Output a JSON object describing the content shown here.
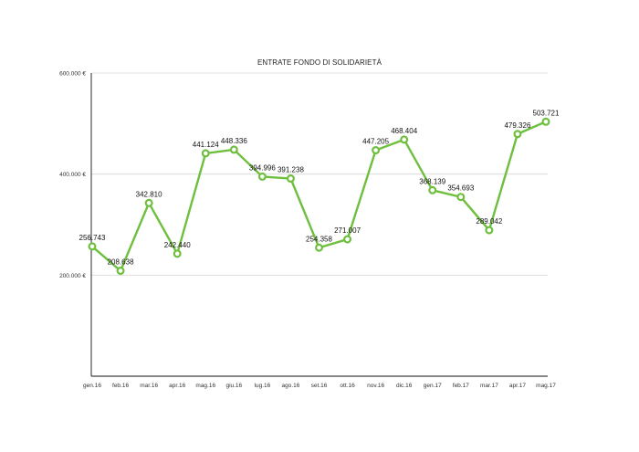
{
  "chart_data": {
    "type": "line",
    "title": "ENTRATE FONDO DI SOLIDARIETÀ",
    "xlabel": "",
    "ylabel": "",
    "ylim": [
      0,
      600000
    ],
    "yticks": [
      {
        "value": 200000,
        "label": "200.000 €"
      },
      {
        "value": 400000,
        "label": "400.000 €"
      },
      {
        "value": 600000,
        "label": "600.000 €"
      }
    ],
    "categories": [
      "gen.16",
      "feb.16",
      "mar.16",
      "apr.16",
      "mag.16",
      "giu.16",
      "lug.16",
      "ago.16",
      "set.16",
      "ott.16",
      "nov.16",
      "dic.16",
      "gen.17",
      "feb.17",
      "mar.17",
      "apr.17",
      "mag.17"
    ],
    "series": [
      {
        "name": "Entrate",
        "color": "#6fbf3f",
        "values": [
          256743,
          208638,
          342810,
          242440,
          441124,
          448336,
          394996,
          391238,
          254358,
          271007,
          447205,
          468404,
          368139,
          354693,
          289042,
          479326,
          503721
        ],
        "labels": [
          "256.743",
          "208.638",
          "342.810",
          "242.440",
          "441.124",
          "448.336",
          "394.996",
          "391.238",
          "254.358",
          "271.007",
          "447.205",
          "468.404",
          "368.139",
          "354.693",
          "289.042",
          "479.326",
          "503.721"
        ]
      }
    ],
    "grid": true
  }
}
